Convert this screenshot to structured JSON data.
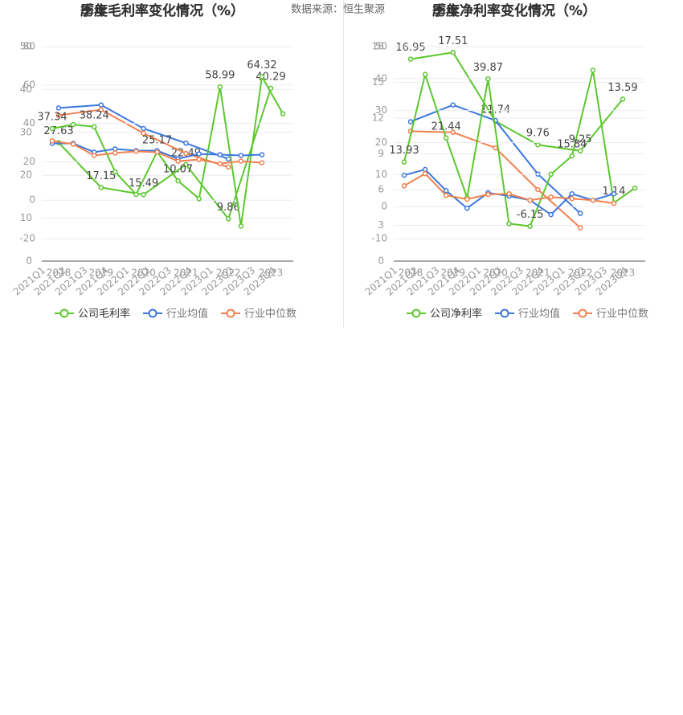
{
  "source": "数据来源：恒生聚源",
  "chart_data": [
    {
      "type": "line",
      "title": "历年毛利率变化情况（%）",
      "categories": [
        "2018",
        "2019",
        "2020",
        "2021",
        "2022",
        "2023"
      ],
      "ylim": [
        0,
        50
      ],
      "yticks": [
        0,
        10,
        20,
        30,
        40,
        50
      ],
      "series": [
        {
          "name": "公司毛利率",
          "color": "#5cc72e",
          "values": [
            27.63,
            17.15,
            15.49,
            22.49,
            9.86,
            40.29
          ],
          "value_labels": [
            "27.63",
            "17.15",
            "15.49",
            "22.49",
            "9.86",
            "40.29"
          ]
        },
        {
          "name": "行业均值",
          "color": "#3b78dd",
          "values": [
            35.7,
            36.4,
            30.9,
            27.5,
            23.8,
            null
          ]
        },
        {
          "name": "行业中位数",
          "color": "#f2804f",
          "values": [
            34,
            35.3,
            29.8,
            25.1,
            21.9,
            null
          ]
        }
      ]
    },
    {
      "type": "line",
      "title": "季度毛利率变化情况（%）",
      "categories": [
        "2021Q1",
        "2021Q2",
        "2021Q3",
        "2021Q4",
        "2022Q1",
        "2022Q2",
        "2022Q3",
        "2022Q4",
        "2023Q1",
        "2023Q2",
        "2023Q3",
        "2023Q4"
      ],
      "ylim": [
        -20,
        80
      ],
      "yticks": [
        -20,
        0,
        20,
        40,
        60,
        80
      ],
      "series": [
        {
          "name": "公司毛利率",
          "color": "#5cc72e",
          "values": [
            37.34,
            39.4,
            38.24,
            14.8,
            3,
            25.17,
            10.07,
            0.8,
            58.99,
            -13.5,
            64.32,
            45
          ],
          "value_labels": [
            "37.34",
            null,
            "38.24",
            null,
            null,
            "25.17",
            "10.07",
            null,
            "58.99",
            null,
            "64.32",
            null
          ]
        },
        {
          "name": "行业均值",
          "color": "#3b78dd",
          "values": [
            29.6,
            29.6,
            25,
            26.7,
            25.8,
            25.8,
            21.6,
            24.1,
            23.7,
            23.3,
            23.7,
            null
          ]
        },
        {
          "name": "行业中位数",
          "color": "#f2804f",
          "values": [
            30.9,
            29.2,
            23.3,
            24.6,
            25.4,
            25,
            20.3,
            21.2,
            19,
            20.3,
            19.5,
            null
          ]
        }
      ]
    },
    {
      "type": "line",
      "title": "历年净利率变化情况（%）",
      "categories": [
        "2018",
        "2019",
        "2020",
        "2021",
        "2022",
        "2023"
      ],
      "ylim": [
        0,
        18
      ],
      "yticks": [
        0,
        3,
        6,
        9,
        12,
        15,
        18
      ],
      "series": [
        {
          "name": "公司净利率",
          "color": "#5cc72e",
          "values": [
            16.95,
            17.51,
            11.74,
            9.76,
            9.25,
            13.59
          ],
          "value_labels": [
            "16.95",
            "17.51",
            "11.74",
            "9.76",
            "9.25",
            "13.59"
          ]
        },
        {
          "name": "行业均值",
          "color": "#3b78dd",
          "values": [
            11.7,
            13.1,
            11.8,
            7.3,
            4,
            null
          ]
        },
        {
          "name": "行业中位数",
          "color": "#f2804f",
          "values": [
            10.9,
            10.8,
            9.5,
            6,
            2.8,
            null
          ]
        }
      ]
    },
    {
      "type": "line",
      "title": "季度净利率变化情况（%）",
      "categories": [
        "2021Q1",
        "2021Q2",
        "2021Q3",
        "2021Q4",
        "2022Q1",
        "2022Q2",
        "2022Q3",
        "2022Q4",
        "2023Q1",
        "2023Q2",
        "2023Q3",
        "2023Q4"
      ],
      "ylim": [
        -10,
        50
      ],
      "yticks": [
        -10,
        0,
        10,
        20,
        30,
        40,
        50
      ],
      "series": [
        {
          "name": "公司净利率",
          "color": "#5cc72e",
          "values": [
            13.93,
            41.3,
            21.44,
            2.8,
            39.87,
            -5.3,
            -6.15,
            10.1,
            15.84,
            42.6,
            1.14,
            5.8
          ],
          "value_labels": [
            "13.93",
            null,
            "21.44",
            null,
            "39.87",
            null,
            "-6.15",
            null,
            "15.84",
            null,
            "1.14",
            null
          ]
        },
        {
          "name": "行业均值",
          "color": "#3b78dd",
          "values": [
            9.8,
            11.6,
            5,
            -0.5,
            4.3,
            3.3,
            2,
            -2.5,
            4,
            2,
            4,
            null
          ]
        },
        {
          "name": "行业中位数",
          "color": "#f2804f",
          "values": [
            6.5,
            10.3,
            3.5,
            2.3,
            3.8,
            4,
            2,
            3,
            2.5,
            2,
            1,
            null
          ]
        }
      ]
    }
  ]
}
